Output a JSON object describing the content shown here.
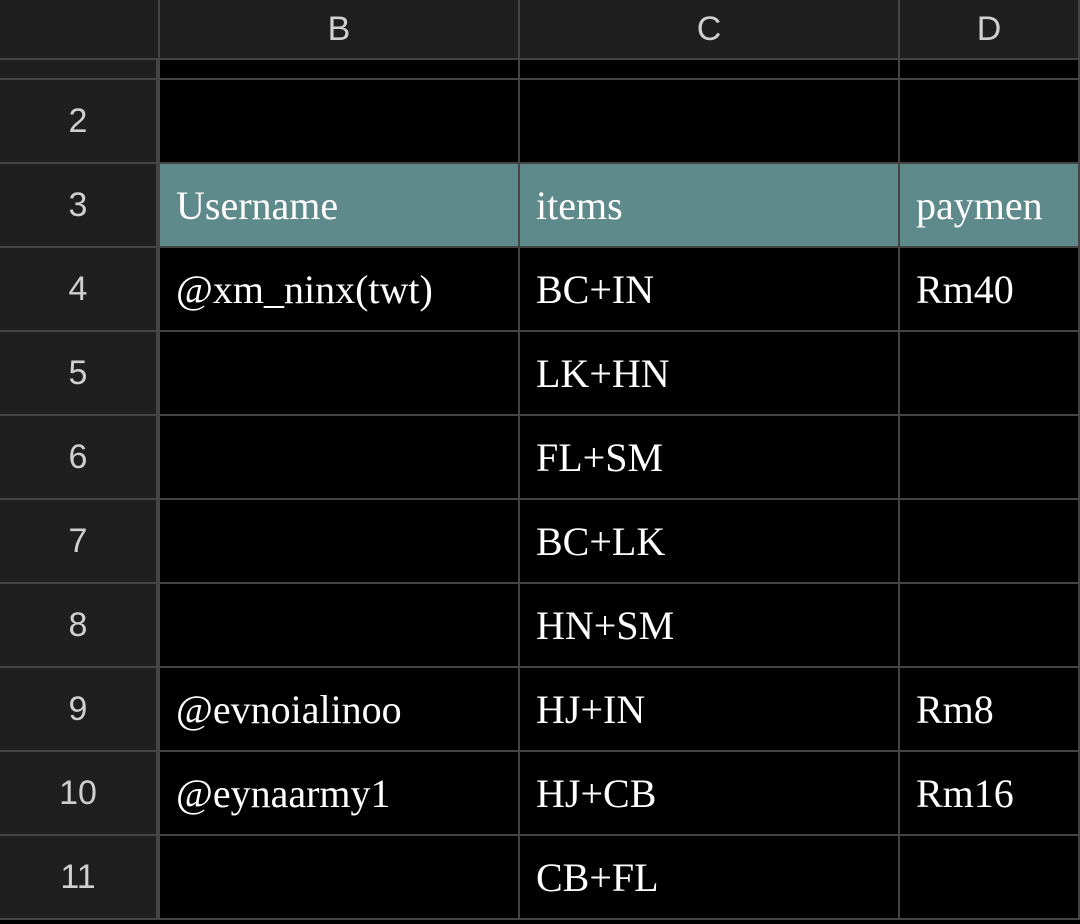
{
  "columns": {
    "rowhead": "",
    "B": "B",
    "C": "C",
    "D": "D"
  },
  "row_numbers": [
    "2",
    "3",
    "4",
    "5",
    "6",
    "7",
    "8",
    "9",
    "10",
    "11"
  ],
  "header_row_index": 1,
  "colors": {
    "app_background": "#000000",
    "header_background": "#1f1f1f",
    "header_text": "#d0d0d0",
    "border": "#444444",
    "cell_text": "#ffffff",
    "table_header_fill": "#5f8a8b"
  },
  "rows": [
    {
      "B": "",
      "C": "",
      "D": ""
    },
    {
      "B": "Username",
      "C": "items",
      "D": "paymen"
    },
    {
      "B": "@xm_ninx(twt)",
      "C": "BC+IN",
      "D": "Rm40"
    },
    {
      "B": "",
      "C": "LK+HN",
      "D": ""
    },
    {
      "B": "",
      "C": "FL+SM",
      "D": ""
    },
    {
      "B": "",
      "C": "BC+LK",
      "D": ""
    },
    {
      "B": "",
      "C": "HN+SM",
      "D": ""
    },
    {
      "B": "@evnoialinoo",
      "C": "HJ+IN",
      "D": "Rm8"
    },
    {
      "B": "@eynaarmy1",
      "C": "HJ+CB",
      "D": "Rm16"
    },
    {
      "B": "",
      "C": "CB+FL",
      "D": ""
    }
  ]
}
